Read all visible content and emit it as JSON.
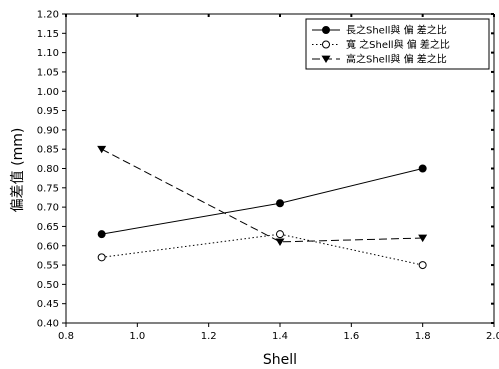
{
  "chart_data": {
    "type": "line",
    "xlabel": "Shell",
    "ylabel": "偏差值 (mm)",
    "xlim": [
      0.8,
      2.0
    ],
    "ylim": [
      0.4,
      1.2
    ],
    "x_ticks": [
      "0.8",
      "1.0",
      "1.2",
      "1.4",
      "1.6",
      "1.8",
      "2.0"
    ],
    "y_ticks": [
      "0.40",
      "0.45",
      "0.50",
      "0.55",
      "0.60",
      "0.65",
      "0.70",
      "0.75",
      "0.80",
      "0.85",
      "0.90",
      "0.95",
      "1.00",
      "1.05",
      "1.10",
      "1.15",
      "1.20"
    ],
    "grid": false,
    "legend_position": "top-right",
    "series": [
      {
        "name": "長之Shell與 偏 差之比",
        "marker": "filled-circle",
        "line": "solid",
        "x": [
          0.9,
          1.4,
          1.8
        ],
        "y": [
          0.63,
          0.71,
          0.8
        ]
      },
      {
        "name": "寬 之Shell與 偏 差之比",
        "marker": "open-circle",
        "line": "dotted",
        "x": [
          0.9,
          1.4,
          1.8
        ],
        "y": [
          0.57,
          0.63,
          0.55
        ]
      },
      {
        "name": "高之Shell與 偏 差之比",
        "marker": "filled-triangle-down",
        "line": "dashed",
        "x": [
          0.9,
          1.4,
          1.8
        ],
        "y": [
          0.85,
          0.61,
          0.62
        ]
      }
    ]
  }
}
